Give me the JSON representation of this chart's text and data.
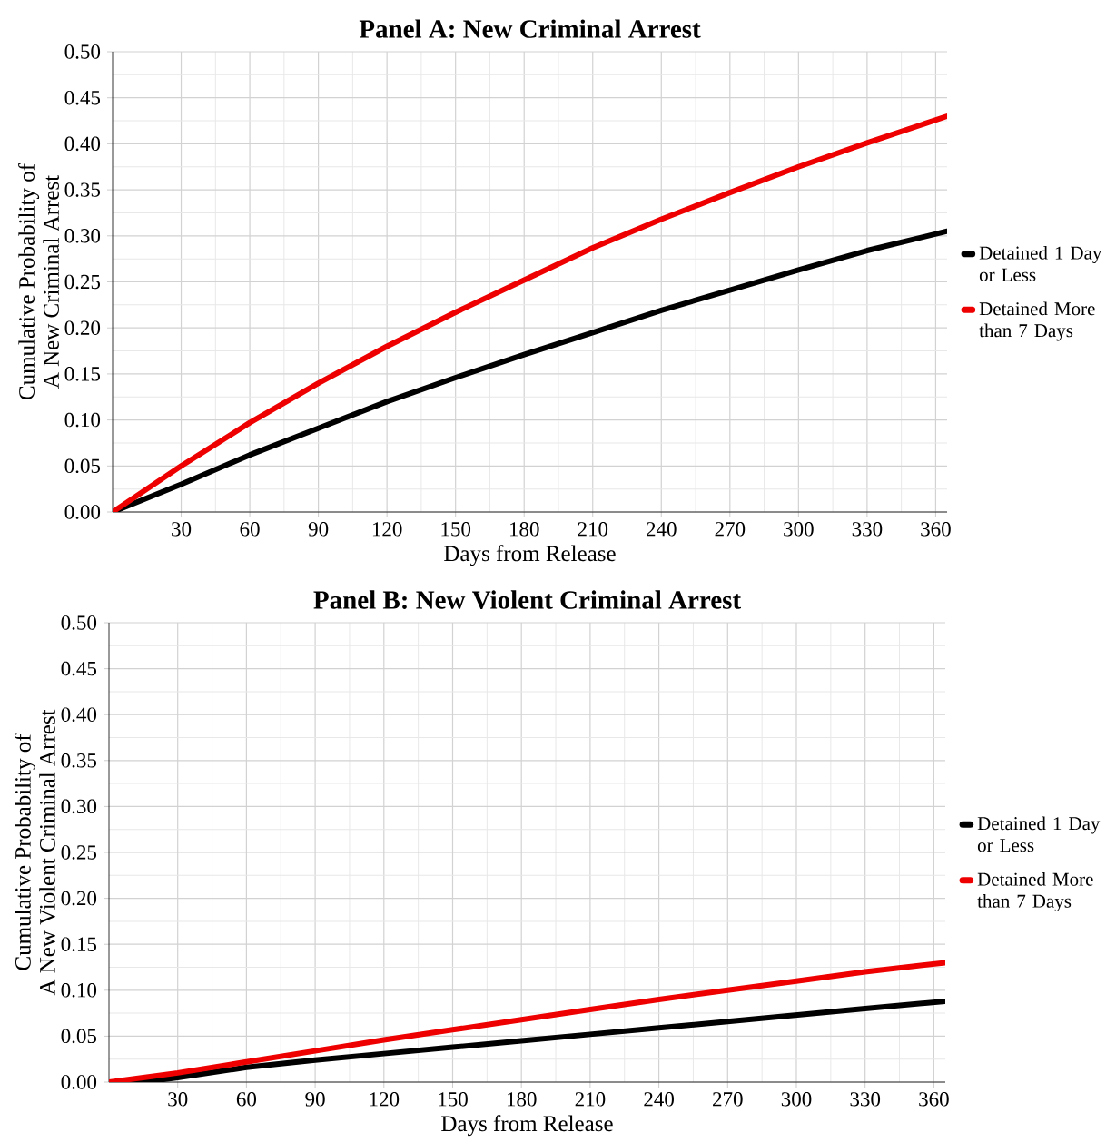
{
  "chart_data": [
    {
      "type": "line",
      "title": "Panel A: New Criminal Arrest",
      "xlabel": "Days from Release",
      "ylabel": "Cumulative Probability of\nA New Criminal Arrest",
      "x": [
        0,
        30,
        60,
        90,
        120,
        150,
        180,
        210,
        240,
        270,
        300,
        330,
        365
      ],
      "series": [
        {
          "name": "Detained 1 Day or Less",
          "color": "#000000",
          "values": [
            0,
            0.03,
            0.062,
            0.091,
            0.12,
            0.146,
            0.171,
            0.195,
            0.219,
            0.241,
            0.263,
            0.284,
            0.305
          ]
        },
        {
          "name": "Detained More than 7 Days",
          "color": "#ee0000",
          "values": [
            0,
            0.05,
            0.097,
            0.14,
            0.18,
            0.217,
            0.252,
            0.287,
            0.318,
            0.347,
            0.375,
            0.401,
            0.43
          ]
        }
      ],
      "xlim": [
        0,
        365
      ],
      "ylim": [
        0,
        0.5
      ],
      "xticks": [
        30,
        60,
        90,
        120,
        150,
        180,
        210,
        240,
        270,
        300,
        330,
        360
      ],
      "yticks": [
        {
          "value": 0,
          "label": "0.00"
        },
        {
          "value": 0.05,
          "label": "0.05"
        },
        {
          "value": 0.1,
          "label": "0.10"
        },
        {
          "value": 0.15,
          "label": "0.15"
        },
        {
          "value": 0.2,
          "label": "0.20"
        },
        {
          "value": 0.25,
          "label": "0.25"
        },
        {
          "value": 0.3,
          "label": "0.30"
        },
        {
          "value": 0.35,
          "label": "0.35"
        },
        {
          "value": 0.4,
          "label": "0.40"
        },
        {
          "value": 0.45,
          "label": "0.45"
        },
        {
          "value": 0.5,
          "label": "0.50"
        }
      ],
      "grid": true,
      "legend": "right",
      "marker": "none",
      "line_style": "solid"
    },
    {
      "type": "line",
      "title": "Panel B: New Violent Criminal Arrest",
      "xlabel": "Days from Release",
      "ylabel": "Cumulative Probability of\nA New Violent Criminal Arrest",
      "x": [
        0,
        15,
        30,
        60,
        90,
        120,
        150,
        180,
        210,
        240,
        270,
        300,
        330,
        365
      ],
      "series": [
        {
          "name": "Detained 1 Day or Less",
          "color": "#000000",
          "values": [
            0,
            0.0,
            0.005,
            0.016,
            0.024,
            0.031,
            0.038,
            0.045,
            0.052,
            0.059,
            0.066,
            0.073,
            0.08,
            0.088
          ]
        },
        {
          "name": "Detained More than 7 Days",
          "color": "#ee0000",
          "values": [
            0,
            0.005,
            0.01,
            0.022,
            0.034,
            0.046,
            0.057,
            0.068,
            0.079,
            0.09,
            0.1,
            0.11,
            0.12,
            0.13
          ]
        }
      ],
      "xlim": [
        0,
        365
      ],
      "ylim": [
        0,
        0.5
      ],
      "xticks": [
        30,
        60,
        90,
        120,
        150,
        180,
        210,
        240,
        270,
        300,
        330,
        360
      ],
      "yticks": [
        {
          "value": 0,
          "label": "0.00"
        },
        {
          "value": 0.05,
          "label": "0.05"
        },
        {
          "value": 0.1,
          "label": "0.10"
        },
        {
          "value": 0.15,
          "label": "0.15"
        },
        {
          "value": 0.2,
          "label": "0.20"
        },
        {
          "value": 0.25,
          "label": "0.25"
        },
        {
          "value": 0.3,
          "label": "0.30"
        },
        {
          "value": 0.35,
          "label": "0.35"
        },
        {
          "value": 0.4,
          "label": "0.40"
        },
        {
          "value": 0.45,
          "label": "0.45"
        },
        {
          "value": 0.5,
          "label": "0.50"
        }
      ],
      "grid": true,
      "legend": "right",
      "marker": "none",
      "line_style": "solid"
    }
  ]
}
